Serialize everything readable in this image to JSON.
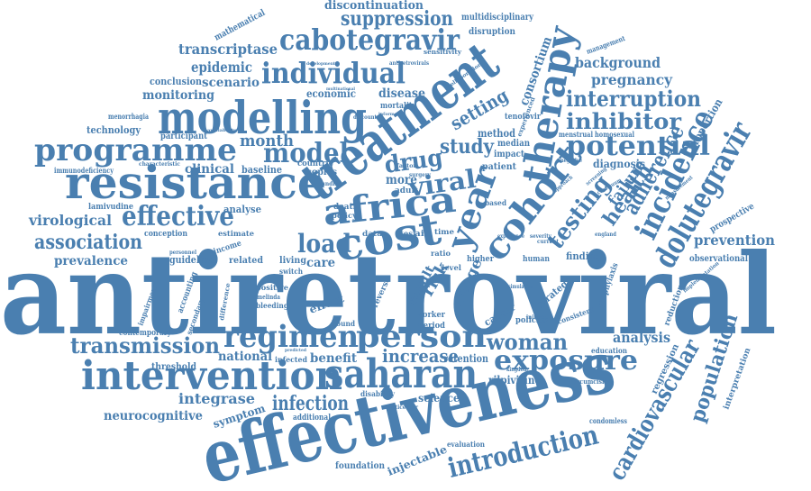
{
  "cloud": {
    "color": "#4a7fb0",
    "words": [
      {
        "id": "antiretroviral",
        "text": "antiretroviral"
      },
      {
        "id": "effectiveness",
        "text": "effectiveness"
      },
      {
        "id": "treatment",
        "text": "treatment"
      },
      {
        "id": "modelling",
        "text": "modelling"
      },
      {
        "id": "resistance",
        "text": "resistance"
      },
      {
        "id": "cost",
        "text": "cost"
      },
      {
        "id": "africa",
        "text": "africa"
      },
      {
        "id": "cohort",
        "text": "cohort"
      },
      {
        "id": "year",
        "text": "year"
      },
      {
        "id": "therapy",
        "text": "therapy"
      },
      {
        "id": "programme",
        "text": "programme"
      },
      {
        "id": "intervention",
        "text": "intervention"
      },
      {
        "id": "saharan",
        "text": "saharan"
      },
      {
        "id": "cabotegravir",
        "text": "cabotegravir"
      },
      {
        "id": "individual",
        "text": "individual"
      },
      {
        "id": "regimen",
        "text": "regimen"
      },
      {
        "id": "person",
        "text": "person"
      },
      {
        "id": "dolutegravir",
        "text": "dolutegravir"
      },
      {
        "id": "incidence",
        "text": "incidence"
      },
      {
        "id": "exposure",
        "text": "exposure"
      },
      {
        "id": "introduction",
        "text": "introduction"
      },
      {
        "id": "cardiovascular",
        "text": "cardiovascular"
      },
      {
        "id": "population",
        "text": "population"
      },
      {
        "id": "potential",
        "text": "potential"
      },
      {
        "id": "interruption",
        "text": "interruption"
      },
      {
        "id": "inhibitor",
        "text": "inhibitor"
      },
      {
        "id": "effective",
        "text": "effective"
      },
      {
        "id": "model",
        "text": "model"
      },
      {
        "id": "load",
        "text": "load"
      },
      {
        "id": "viral",
        "text": "viral"
      },
      {
        "id": "drug",
        "text": "drug"
      },
      {
        "id": "association",
        "text": "association"
      },
      {
        "id": "transmission",
        "text": "transmission"
      },
      {
        "id": "suppression",
        "text": "suppression"
      },
      {
        "id": "testing",
        "text": "testing"
      },
      {
        "id": "health",
        "text": "health"
      },
      {
        "id": "adherence",
        "text": "adherence"
      },
      {
        "id": "failure",
        "text": "failure"
      },
      {
        "id": "woman",
        "text": "woman"
      },
      {
        "id": "increase",
        "text": "increase"
      },
      {
        "id": "infection",
        "text": "infection"
      },
      {
        "id": "month",
        "text": "month"
      },
      {
        "id": "study",
        "text": "study"
      },
      {
        "id": "setting",
        "text": "setting"
      },
      {
        "id": "consortium",
        "text": "consortium"
      },
      {
        "id": "transcriptase",
        "text": "transcriptase"
      },
      {
        "id": "epidemic",
        "text": "epidemic"
      },
      {
        "id": "scenario",
        "text": "scenario"
      },
      {
        "id": "monitoring",
        "text": "monitoring"
      },
      {
        "id": "discontinuation",
        "text": "discontinuation"
      },
      {
        "id": "background",
        "text": "background"
      },
      {
        "id": "pregnancy",
        "text": "pregnancy"
      },
      {
        "id": "prevention",
        "text": "prevention"
      },
      {
        "id": "virological",
        "text": "virological"
      },
      {
        "id": "prevalence",
        "text": "prevalence"
      },
      {
        "id": "integrase",
        "text": "integrase"
      },
      {
        "id": "neurocognitive",
        "text": "neurocognitive"
      },
      {
        "id": "national",
        "text": "national"
      },
      {
        "id": "analysis",
        "text": "analysis"
      },
      {
        "id": "clinical",
        "text": "clinical"
      },
      {
        "id": "disease",
        "text": "disease"
      },
      {
        "id": "economic",
        "text": "economic"
      },
      {
        "id": "risk",
        "text": "risk"
      },
      {
        "id": "range",
        "text": "range"
      },
      {
        "id": "result",
        "text": "result"
      },
      {
        "id": "benefit",
        "text": "benefit"
      },
      {
        "id": "retention",
        "text": "retention"
      },
      {
        "id": "rilpivirine",
        "text": "rilpivirine"
      },
      {
        "id": "science",
        "text": "science"
      },
      {
        "id": "symptom",
        "text": "symptom"
      },
      {
        "id": "injectable",
        "text": "injectable"
      },
      {
        "id": "foundation",
        "text": "foundation"
      },
      {
        "id": "observational",
        "text": "observational"
      },
      {
        "id": "prospective",
        "text": "prospective"
      },
      {
        "id": "proportion",
        "text": "proportion"
      },
      {
        "id": "diagnosis",
        "text": "diagnosis"
      },
      {
        "id": "method",
        "text": "method"
      },
      {
        "id": "care",
        "text": "care"
      },
      {
        "id": "more",
        "text": "more"
      },
      {
        "id": "effect",
        "text": "effect"
      },
      {
        "id": "finding",
        "text": "finding"
      },
      {
        "id": "guideline",
        "text": "guideline"
      },
      {
        "id": "analyse",
        "text": "analyse"
      },
      {
        "id": "baseline",
        "text": "baseline"
      },
      {
        "id": "copies",
        "text": "copies"
      },
      {
        "id": "participant",
        "text": "participant"
      },
      {
        "id": "technology",
        "text": "technology"
      },
      {
        "id": "conclusion",
        "text": "conclusion"
      },
      {
        "id": "mathematical",
        "text": "mathematical"
      },
      {
        "id": "multidisciplinary",
        "text": "multidisciplinary"
      },
      {
        "id": "disruption",
        "text": "disruption"
      },
      {
        "id": "management",
        "text": "management"
      },
      {
        "id": "threshold",
        "text": "threshold"
      },
      {
        "id": "contemporary",
        "text": "contemporary"
      },
      {
        "id": "lamivudine",
        "text": "lamivudine"
      },
      {
        "id": "immunodeficiency",
        "text": "immunodeficiency"
      },
      {
        "id": "menorrhagia",
        "text": "menorrhagia"
      },
      {
        "id": "conception",
        "text": "conception"
      },
      {
        "id": "accounting",
        "text": "accounting"
      },
      {
        "id": "secondary",
        "text": "secondary"
      },
      {
        "id": "impairment",
        "text": "impairment"
      },
      {
        "id": "related",
        "text": "related"
      },
      {
        "id": "living",
        "text": "living"
      },
      {
        "id": "income",
        "text": "income"
      },
      {
        "id": "estimate",
        "text": "estimate"
      },
      {
        "id": "positive",
        "text": "positive"
      },
      {
        "id": "bleeding",
        "text": "bleeding"
      },
      {
        "id": "infected",
        "text": "infected"
      },
      {
        "id": "bound",
        "text": "bound"
      },
      {
        "id": "reverse",
        "text": "reverse"
      },
      {
        "id": "death",
        "text": "death"
      },
      {
        "id": "policy",
        "text": "policy"
      },
      {
        "id": "adult",
        "text": "adult"
      },
      {
        "id": "countrie",
        "text": "countrie"
      },
      {
        "id": "impact",
        "text": "impact"
      },
      {
        "id": "patient",
        "text": "patient"
      },
      {
        "id": "median",
        "text": "median"
      },
      {
        "id": "tenofovir",
        "text": "tenofovir"
      },
      {
        "id": "menstrual",
        "text": "menstrual"
      },
      {
        "id": "homosexual",
        "text": "homosexual"
      },
      {
        "id": "mortality",
        "text": "mortality"
      },
      {
        "id": "human",
        "text": "human"
      },
      {
        "id": "higher",
        "text": "higher"
      },
      {
        "id": "cancer",
        "text": "cancer"
      },
      {
        "id": "strategy",
        "text": "strategy"
      },
      {
        "id": "policies",
        "text": "policies"
      },
      {
        "id": "prophylaxis",
        "text": "prophylaxis"
      },
      {
        "id": "reduction",
        "text": "reduction"
      },
      {
        "id": "regression",
        "text": "regression"
      },
      {
        "id": "interpretation",
        "text": "interpretation"
      },
      {
        "id": "education",
        "text": "education"
      },
      {
        "id": "circumcision",
        "text": "circumcision"
      },
      {
        "id": "condomless",
        "text": "condomless"
      },
      {
        "id": "evaluation",
        "text": "evaluation"
      },
      {
        "id": "additional",
        "text": "additional"
      },
      {
        "id": "disability",
        "text": "disability"
      },
      {
        "id": "multicenter",
        "text": "multicenter"
      },
      {
        "id": "period",
        "text": "period"
      },
      {
        "id": "worker",
        "text": "worker"
      },
      {
        "id": "level",
        "text": "level"
      },
      {
        "id": "sensitivity",
        "text": "sensitivity"
      },
      {
        "id": "collaboration",
        "text": "collaboration"
      },
      {
        "id": "experienced",
        "text": "experienced"
      },
      {
        "id": "based",
        "text": "based"
      },
      {
        "id": "ratio",
        "text": "ratio"
      },
      {
        "id": "time",
        "text": "time"
      },
      {
        "id": "aid",
        "text": "aid"
      },
      {
        "id": "test",
        "text": "test"
      },
      {
        "id": "data",
        "text": "data"
      },
      {
        "id": "switch",
        "text": "switch"
      },
      {
        "id": "implementation",
        "text": "implementation"
      },
      {
        "id": "consistent",
        "text": "consistent"
      },
      {
        "id": "development",
        "text": "development"
      },
      {
        "id": "discount",
        "text": "discount"
      },
      {
        "id": "multinational",
        "text": "multinational"
      },
      {
        "id": "informed",
        "text": "informed"
      },
      {
        "id": "availability",
        "text": "availability"
      },
      {
        "id": "characteristic",
        "text": "characteristic"
      },
      {
        "id": "personnel",
        "text": "personnel"
      },
      {
        "id": "funding",
        "text": "funding"
      },
      {
        "id": "antiretrovirals",
        "text": "antiretrovirals"
      },
      {
        "id": "factor",
        "text": "factor"
      },
      {
        "id": "surgery",
        "text": "surgery"
      },
      {
        "id": "negative",
        "text": "negative"
      },
      {
        "id": "screening",
        "text": "screening"
      },
      {
        "id": "approach",
        "text": "approach"
      },
      {
        "id": "continuum",
        "text": "continuum"
      },
      {
        "id": "measurement",
        "text": "measurement"
      },
      {
        "id": "england",
        "text": "england"
      },
      {
        "id": "severity",
        "text": "severity"
      },
      {
        "id": "initiator",
        "text": "initiator"
      },
      {
        "id": "simulation",
        "text": "simulation"
      },
      {
        "id": "current",
        "text": "current"
      },
      {
        "id": "experience",
        "text": "experience"
      },
      {
        "id": "kingdom",
        "text": "kingdom"
      },
      {
        "id": "predicted",
        "text": "predicted"
      },
      {
        "id": "melinda",
        "text": "melinda"
      },
      {
        "id": "difference",
        "text": "difference"
      }
    ]
  }
}
